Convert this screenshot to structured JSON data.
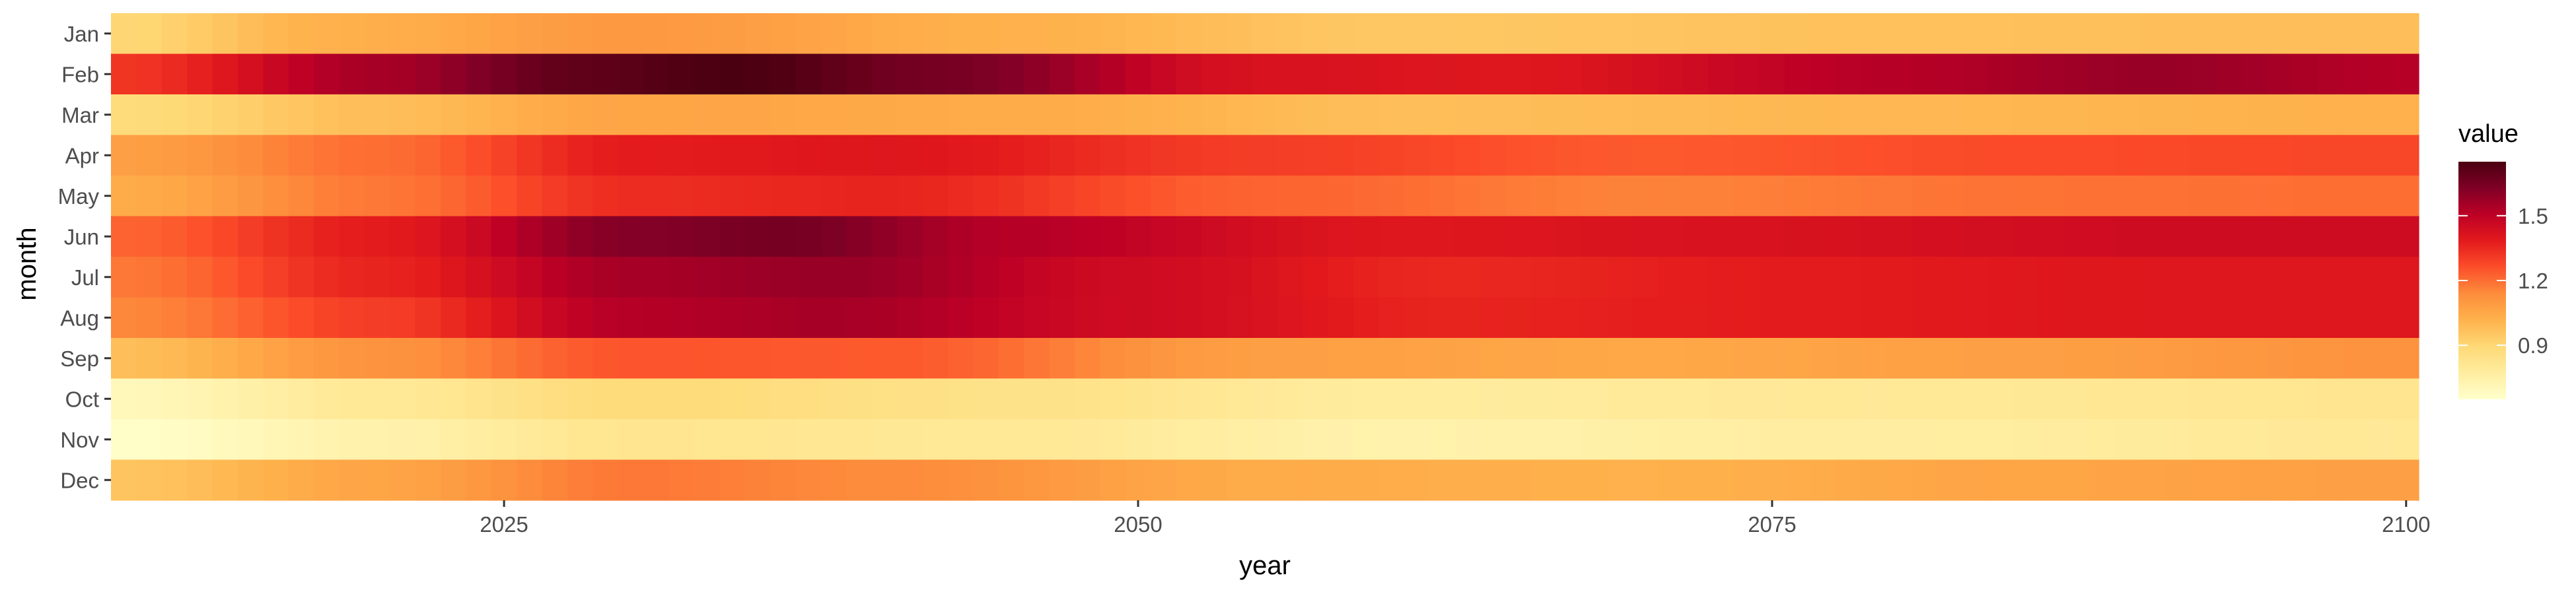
{
  "chart_data": {
    "type": "heatmap",
    "xlabel": "year",
    "ylabel": "month",
    "x_ticks": [
      2025,
      2050,
      2075,
      2100
    ],
    "x_range": [
      2010,
      2100
    ],
    "months": [
      "Jan",
      "Feb",
      "Mar",
      "Apr",
      "May",
      "Jun",
      "Jul",
      "Aug",
      "Sep",
      "Oct",
      "Nov",
      "Dec"
    ],
    "legend": {
      "title": "value",
      "ticks": [
        0.9,
        1.2,
        1.5
      ],
      "range": [
        0.65,
        1.75
      ],
      "position": "right"
    },
    "palette": [
      "#ffffcc",
      "#ffeda0",
      "#fed976",
      "#feb24c",
      "#fd8d3c",
      "#fc4e2a",
      "#e31a1c",
      "#bd0026",
      "#800026",
      "#4a0010"
    ],
    "series": [
      {
        "name": "Jan",
        "keys": [
          [
            2010,
            0.9
          ],
          [
            2018,
            1.02
          ],
          [
            2030,
            1.1
          ],
          [
            2045,
            1.02
          ],
          [
            2060,
            0.95
          ],
          [
            2080,
            0.97
          ],
          [
            2100,
            0.98
          ]
        ]
      },
      {
        "name": "Feb",
        "keys": [
          [
            2010,
            1.32
          ],
          [
            2020,
            1.55
          ],
          [
            2028,
            1.7
          ],
          [
            2034,
            1.75
          ],
          [
            2042,
            1.65
          ],
          [
            2055,
            1.42
          ],
          [
            2065,
            1.4
          ],
          [
            2080,
            1.52
          ],
          [
            2090,
            1.58
          ],
          [
            2100,
            1.52
          ]
        ]
      },
      {
        "name": "Mar",
        "keys": [
          [
            2010,
            0.88
          ],
          [
            2020,
            0.98
          ],
          [
            2030,
            1.06
          ],
          [
            2045,
            1.04
          ],
          [
            2060,
            0.98
          ],
          [
            2080,
            1.0
          ],
          [
            2100,
            1.02
          ]
        ]
      },
      {
        "name": "Apr",
        "keys": [
          [
            2010,
            1.08
          ],
          [
            2020,
            1.2
          ],
          [
            2030,
            1.38
          ],
          [
            2040,
            1.4
          ],
          [
            2055,
            1.3
          ],
          [
            2070,
            1.24
          ],
          [
            2085,
            1.27
          ],
          [
            2100,
            1.28
          ]
        ]
      },
      {
        "name": "May",
        "keys": [
          [
            2010,
            1.04
          ],
          [
            2020,
            1.18
          ],
          [
            2030,
            1.34
          ],
          [
            2040,
            1.36
          ],
          [
            2055,
            1.22
          ],
          [
            2070,
            1.16
          ],
          [
            2085,
            1.19
          ],
          [
            2100,
            1.2
          ]
        ]
      },
      {
        "name": "Jun",
        "keys": [
          [
            2010,
            1.22
          ],
          [
            2020,
            1.38
          ],
          [
            2030,
            1.62
          ],
          [
            2036,
            1.65
          ],
          [
            2045,
            1.52
          ],
          [
            2060,
            1.4
          ],
          [
            2075,
            1.42
          ],
          [
            2090,
            1.45
          ],
          [
            2100,
            1.45
          ]
        ]
      },
      {
        "name": "Jul",
        "keys": [
          [
            2010,
            1.18
          ],
          [
            2020,
            1.36
          ],
          [
            2030,
            1.55
          ],
          [
            2038,
            1.58
          ],
          [
            2050,
            1.45
          ],
          [
            2062,
            1.35
          ],
          [
            2075,
            1.38
          ],
          [
            2090,
            1.4
          ],
          [
            2100,
            1.4
          ]
        ]
      },
      {
        "name": "Aug",
        "keys": [
          [
            2010,
            1.15
          ],
          [
            2020,
            1.3
          ],
          [
            2030,
            1.52
          ],
          [
            2038,
            1.55
          ],
          [
            2050,
            1.45
          ],
          [
            2062,
            1.36
          ],
          [
            2075,
            1.38
          ],
          [
            2090,
            1.4
          ],
          [
            2100,
            1.4
          ]
        ]
      },
      {
        "name": "Sep",
        "keys": [
          [
            2010,
            0.98
          ],
          [
            2020,
            1.12
          ],
          [
            2030,
            1.25
          ],
          [
            2040,
            1.24
          ],
          [
            2055,
            1.08
          ],
          [
            2070,
            1.05
          ],
          [
            2085,
            1.08
          ],
          [
            2100,
            1.12
          ]
        ]
      },
      {
        "name": "Oct",
        "keys": [
          [
            2010,
            0.7
          ],
          [
            2020,
            0.8
          ],
          [
            2030,
            0.88
          ],
          [
            2045,
            0.84
          ],
          [
            2060,
            0.78
          ],
          [
            2080,
            0.8
          ],
          [
            2100,
            0.82
          ]
        ]
      },
      {
        "name": "Nov",
        "keys": [
          [
            2010,
            0.66
          ],
          [
            2020,
            0.74
          ],
          [
            2030,
            0.82
          ],
          [
            2045,
            0.8
          ],
          [
            2060,
            0.74
          ],
          [
            2080,
            0.77
          ],
          [
            2100,
            0.8
          ]
        ]
      },
      {
        "name": "Dec",
        "keys": [
          [
            2010,
            0.96
          ],
          [
            2020,
            1.06
          ],
          [
            2030,
            1.18
          ],
          [
            2040,
            1.14
          ],
          [
            2055,
            1.04
          ],
          [
            2070,
            1.02
          ],
          [
            2085,
            1.06
          ],
          [
            2100,
            1.08
          ]
        ]
      }
    ]
  }
}
